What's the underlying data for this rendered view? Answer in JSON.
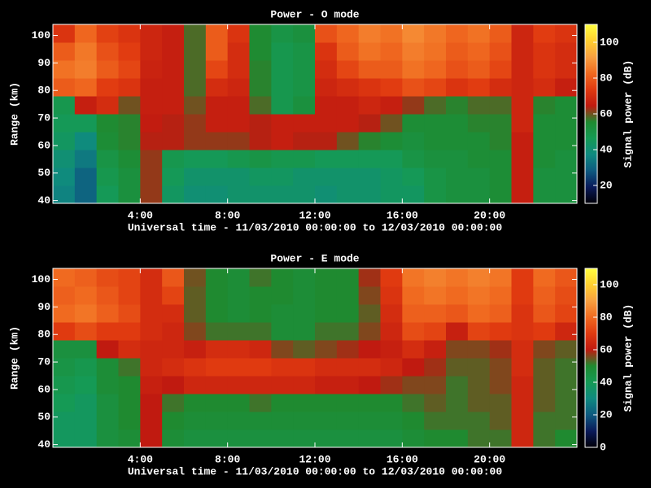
{
  "chart_data": [
    {
      "type": "heatmap",
      "title": "Power - O mode",
      "x_label": "Universal time - 11/03/2010 00:00:00 to 12/03/2010 00:00:00",
      "y_label": "Range (km)",
      "colorbar_label": "Signal power (dB)",
      "x": [
        0,
        1,
        2,
        3,
        4,
        5,
        6,
        7,
        8,
        9,
        10,
        11,
        12,
        13,
        14,
        15,
        16,
        17,
        18,
        19,
        20,
        21,
        22,
        23,
        24
      ],
      "y": [
        39,
        45.5,
        52,
        58.5,
        65,
        71.5,
        78,
        84.5,
        91,
        97.5,
        104
      ],
      "z": [
        [
          36,
          30,
          46,
          52,
          62,
          44,
          40,
          40,
          42,
          42,
          42,
          42,
          40,
          42,
          42,
          44,
          44,
          50,
          52,
          52,
          54,
          66,
          52,
          52
        ],
        [
          38,
          30,
          48,
          52,
          62,
          46,
          42,
          42,
          42,
          44,
          44,
          42,
          42,
          42,
          42,
          44,
          46,
          50,
          52,
          52,
          54,
          66,
          52,
          52
        ],
        [
          40,
          34,
          50,
          54,
          62,
          48,
          46,
          46,
          48,
          50,
          48,
          48,
          46,
          46,
          46,
          46,
          50,
          52,
          52,
          54,
          54,
          66,
          54,
          52
        ],
        [
          44,
          38,
          54,
          56,
          64,
          64,
          62,
          62,
          62,
          64,
          66,
          64,
          64,
          60,
          56,
          54,
          52,
          54,
          54,
          54,
          56,
          66,
          54,
          54
        ],
        [
          46,
          46,
          55,
          56,
          65,
          64,
          62,
          66,
          66,
          64,
          66,
          66,
          66,
          66,
          64,
          60,
          54,
          54,
          54,
          56,
          56,
          68,
          54,
          54
        ],
        [
          48,
          66,
          70,
          60,
          66,
          66,
          60,
          66,
          66,
          58,
          48,
          52,
          66,
          66,
          68,
          66,
          62,
          58,
          56,
          58,
          58,
          68,
          56,
          54
        ],
        [
          80,
          82,
          74,
          72,
          66,
          66,
          58,
          70,
          68,
          56,
          48,
          50,
          68,
          70,
          72,
          74,
          78,
          76,
          72,
          74,
          70,
          68,
          70,
          66
        ],
        [
          84,
          86,
          80,
          76,
          67,
          66,
          58,
          76,
          70,
          56,
          48,
          50,
          70,
          76,
          80,
          80,
          84,
          82,
          78,
          80,
          76,
          68,
          72,
          70
        ],
        [
          80,
          85,
          78,
          74,
          68,
          66,
          58,
          80,
          70,
          55,
          48,
          50,
          72,
          80,
          84,
          82,
          86,
          84,
          80,
          82,
          78,
          68,
          72,
          70
        ],
        [
          72,
          82,
          75,
          72,
          68,
          66,
          58,
          80,
          72,
          55,
          50,
          52,
          78,
          82,
          86,
          84,
          88,
          85,
          82,
          84,
          80,
          68,
          74,
          72
        ]
      ],
      "xlim": [
        0,
        24
      ],
      "ylim": [
        39,
        104
      ],
      "xticks": [
        {
          "value": 4,
          "label": "4:00"
        },
        {
          "value": 8,
          "label": "8:00"
        },
        {
          "value": 12,
          "label": "12:00"
        },
        {
          "value": 16,
          "label": "16:00"
        },
        {
          "value": 20,
          "label": "20:00"
        }
      ],
      "yticks": [
        40,
        50,
        60,
        70,
        80,
        90,
        100
      ],
      "clim": [
        10,
        110
      ],
      "cticks": [
        20,
        40,
        60,
        80,
        100
      ],
      "colorscale": [
        "#000008",
        "#0a1a5a",
        "#0e5a80",
        "#0f8a80",
        "#159a55",
        "#1f8a30",
        "#c01a10",
        "#e03a10",
        "#f06a20",
        "#f8a040",
        "#ffd030",
        "#ffff40"
      ]
    },
    {
      "type": "heatmap",
      "title": "Power - E mode",
      "x_label": "Universal time - 11/03/2010 00:00:00 to 12/03/2010 00:00:00",
      "y_label": "Range (km)",
      "colorbar_label": "Signal power (dB)",
      "x": [
        0,
        1,
        2,
        3,
        4,
        5,
        6,
        7,
        8,
        9,
        10,
        11,
        12,
        13,
        14,
        15,
        16,
        17,
        18,
        19,
        20,
        21,
        22,
        23,
        24
      ],
      "y": [
        39,
        45.5,
        52,
        58.5,
        65,
        71.5,
        78,
        84.5,
        91,
        97.5,
        104
      ],
      "z": [
        [
          38,
          38,
          46,
          48,
          60,
          48,
          46,
          46,
          46,
          46,
          46,
          46,
          46,
          46,
          46,
          46,
          48,
          50,
          50,
          52,
          52,
          64,
          52,
          50
        ],
        [
          38,
          38,
          46,
          50,
          60,
          50,
          48,
          48,
          48,
          48,
          48,
          48,
          48,
          48,
          48,
          48,
          50,
          52,
          52,
          52,
          54,
          64,
          52,
          52
        ],
        [
          40,
          38,
          46,
          50,
          60,
          52,
          50,
          50,
          50,
          52,
          50,
          50,
          50,
          50,
          50,
          50,
          52,
          54,
          52,
          54,
          54,
          64,
          54,
          52
        ],
        [
          42,
          40,
          48,
          50,
          62,
          60,
          64,
          64,
          64,
          64,
          64,
          64,
          62,
          62,
          60,
          58,
          56,
          56,
          52,
          54,
          56,
          64,
          54,
          52
        ],
        [
          44,
          42,
          48,
          52,
          64,
          66,
          68,
          70,
          70,
          70,
          68,
          68,
          66,
          66,
          66,
          64,
          60,
          58,
          54,
          54,
          56,
          66,
          54,
          52
        ],
        [
          46,
          46,
          60,
          66,
          64,
          64,
          62,
          66,
          66,
          64,
          56,
          54,
          56,
          58,
          60,
          62,
          66,
          62,
          56,
          56,
          58,
          66,
          56,
          54
        ],
        [
          70,
          74,
          70,
          70,
          66,
          64,
          56,
          52,
          52,
          52,
          48,
          48,
          52,
          52,
          56,
          64,
          74,
          72,
          62,
          72,
          70,
          68,
          70,
          64
        ],
        [
          80,
          82,
          78,
          74,
          66,
          66,
          54,
          50,
          48,
          50,
          48,
          48,
          50,
          50,
          54,
          66,
          78,
          78,
          76,
          80,
          78,
          68,
          76,
          72
        ],
        [
          78,
          80,
          76,
          72,
          66,
          72,
          54,
          50,
          48,
          50,
          50,
          48,
          50,
          50,
          56,
          68,
          80,
          82,
          80,
          82,
          80,
          70,
          78,
          74
        ],
        [
          80,
          78,
          74,
          72,
          66,
          76,
          55,
          50,
          48,
          52,
          50,
          48,
          50,
          50,
          58,
          70,
          82,
          84,
          82,
          84,
          82,
          70,
          80,
          76
        ]
      ],
      "xlim": [
        0,
        24
      ],
      "ylim": [
        39,
        104
      ],
      "xticks": [
        {
          "value": 4,
          "label": "4:00"
        },
        {
          "value": 8,
          "label": "8:00"
        },
        {
          "value": 12,
          "label": "12:00"
        },
        {
          "value": 16,
          "label": "16:00"
        },
        {
          "value": 20,
          "label": "20:00"
        }
      ],
      "yticks": [
        40,
        50,
        60,
        70,
        80,
        90,
        100
      ],
      "clim": [
        0,
        110
      ],
      "cticks": [
        0,
        20,
        40,
        60,
        80,
        100
      ],
      "colorscale": [
        "#000008",
        "#0a1a5a",
        "#0e5a80",
        "#0f8a80",
        "#159a55",
        "#1f8a30",
        "#c01a10",
        "#e03a10",
        "#f06a20",
        "#f8a040",
        "#ffd030",
        "#ffff40"
      ]
    }
  ]
}
